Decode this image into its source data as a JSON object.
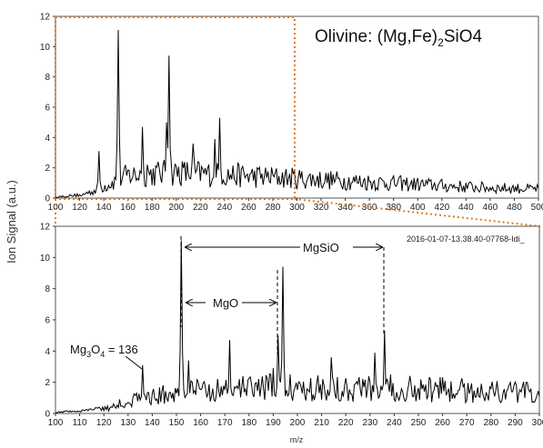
{
  "ylabel": "Ion Signal (a.u.)",
  "xlabel": "m/z",
  "top_panel": {
    "title_prefix": "Olivine: (Mg,Fe)",
    "title_sub": "2",
    "title_suffix": "SiO4",
    "xlim": [
      100,
      500
    ],
    "ylim": [
      0,
      12
    ],
    "xticks": [
      100,
      120,
      140,
      160,
      180,
      200,
      220,
      240,
      260,
      280,
      300,
      320,
      340,
      360,
      380,
      400,
      420,
      440,
      460,
      480,
      500
    ],
    "yticks": [
      0,
      2,
      4,
      6,
      8,
      10,
      12
    ]
  },
  "bottom_panel": {
    "file_label": "2016-01-07-13.38.40-07768-Idi_",
    "xlim": [
      100,
      300
    ],
    "ylim": [
      0,
      12
    ],
    "xticks": [
      100,
      110,
      120,
      130,
      140,
      150,
      160,
      170,
      180,
      190,
      200,
      210,
      220,
      230,
      240,
      250,
      260,
      270,
      280,
      290,
      300
    ],
    "yticks": [
      0,
      2,
      4,
      6,
      8,
      10,
      12
    ],
    "annotations": {
      "mg3o4_base": "Mg",
      "mg3o4_sub1": "3",
      "mg3o4_mid": "O",
      "mg3o4_sub2": "4",
      "mg3o4_rest": " = 136",
      "mgo": "MgO",
      "mgsio": "MgSiO"
    }
  },
  "colors": {
    "trace": "#000000",
    "zoom_box": "#e07b22"
  },
  "chart_data": [
    {
      "type": "line",
      "xlim": [
        100,
        500
      ],
      "ylim": [
        0,
        12
      ],
      "peaks": [
        {
          "x": 136,
          "y": 3.1
        },
        {
          "x": 152,
          "y": 11.1
        },
        {
          "x": 172,
          "y": 4.7
        },
        {
          "x": 176,
          "y": 2.2
        },
        {
          "x": 192,
          "y": 5.0
        },
        {
          "x": 194,
          "y": 9.4
        },
        {
          "x": 214,
          "y": 3.6
        },
        {
          "x": 232,
          "y": 3.9
        },
        {
          "x": 236,
          "y": 5.3
        }
      ],
      "baseline": [
        {
          "x": 100,
          "y": 0.1
        },
        {
          "x": 130,
          "y": 0.4
        },
        {
          "x": 160,
          "y": 1.5
        },
        {
          "x": 200,
          "y": 1.7
        },
        {
          "x": 250,
          "y": 1.5
        },
        {
          "x": 300,
          "y": 1.3
        },
        {
          "x": 350,
          "y": 1.1
        },
        {
          "x": 400,
          "y": 0.9
        },
        {
          "x": 450,
          "y": 0.7
        },
        {
          "x": 500,
          "y": 0.6
        }
      ]
    },
    {
      "type": "line",
      "xlim": [
        100,
        300
      ],
      "ylim": [
        0,
        12
      ],
      "peaks": [
        {
          "x": 136,
          "y": 3.1
        },
        {
          "x": 152,
          "y": 11.1
        },
        {
          "x": 155,
          "y": 3.4
        },
        {
          "x": 172,
          "y": 4.7
        },
        {
          "x": 176,
          "y": 2.2
        },
        {
          "x": 190,
          "y": 2.9
        },
        {
          "x": 192,
          "y": 5.0
        },
        {
          "x": 194,
          "y": 9.4
        },
        {
          "x": 214,
          "y": 3.6
        },
        {
          "x": 232,
          "y": 3.9
        },
        {
          "x": 236,
          "y": 5.3
        }
      ],
      "baseline": [
        {
          "x": 100,
          "y": 0.1
        },
        {
          "x": 120,
          "y": 0.4
        },
        {
          "x": 130,
          "y": 0.8
        },
        {
          "x": 145,
          "y": 1.2
        },
        {
          "x": 160,
          "y": 1.5
        },
        {
          "x": 200,
          "y": 1.7
        },
        {
          "x": 250,
          "y": 1.6
        },
        {
          "x": 300,
          "y": 1.3
        }
      ]
    }
  ]
}
